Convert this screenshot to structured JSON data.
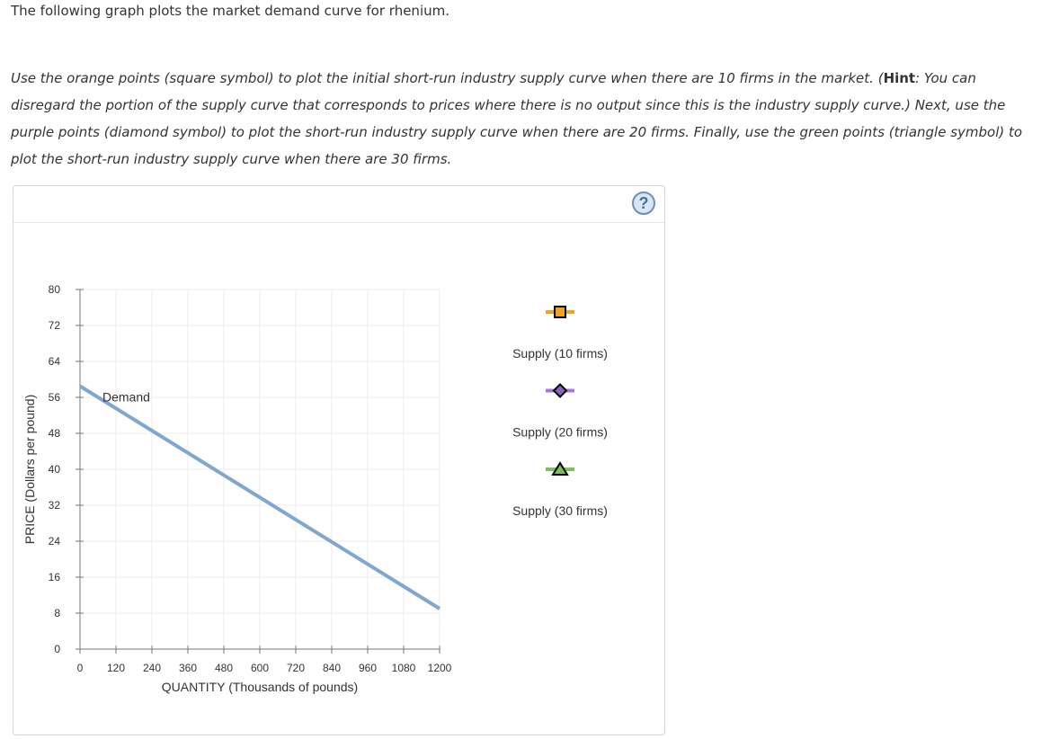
{
  "intro": "The following graph plots the market demand curve for rhenium.",
  "instructions": {
    "p1": "Use the orange points (square symbol) to plot the initial short-run industry supply curve when there are 10 firms in the market. (",
    "hint_label": "Hint",
    "p2": ": You can disregard the portion of the supply curve that corresponds to prices where there is no output since this is the industry supply curve.) Next, use the purple points (diamond symbol) to plot the short-run industry supply curve when there are 20 firms. Finally, use the green points (triangle symbol) to plot the short-run industry supply curve when there are 30 firms."
  },
  "help_label": "?",
  "chart_data": {
    "type": "line",
    "xlabel": "QUANTITY (Thousands of pounds)",
    "ylabel": "PRICE (Dollars per pound)",
    "xlim": [
      0,
      1200
    ],
    "ylim": [
      0,
      80
    ],
    "x_ticks": [
      0,
      120,
      240,
      360,
      480,
      600,
      720,
      840,
      960,
      1080,
      1200
    ],
    "y_ticks": [
      0,
      8,
      16,
      24,
      32,
      40,
      48,
      56,
      64,
      72,
      80
    ],
    "grid": true,
    "series": [
      {
        "name": "Demand",
        "color": "#7fa7cf",
        "x": [
          0,
          1200
        ],
        "y": [
          58.5,
          9
        ]
      }
    ],
    "legend": [
      {
        "label": "Supply (10 firms)",
        "symbol": "square",
        "color": "#f2a122",
        "line_color": "#f2a122"
      },
      {
        "label": "Supply (20 firms)",
        "symbol": "diamond",
        "color": "#8e62c2",
        "line_color": "#a57ad6"
      },
      {
        "label": "Supply (30 firms)",
        "symbol": "triangle",
        "color": "#79c05a",
        "line_color": "#7ac25b"
      }
    ],
    "legend_position": "right"
  }
}
